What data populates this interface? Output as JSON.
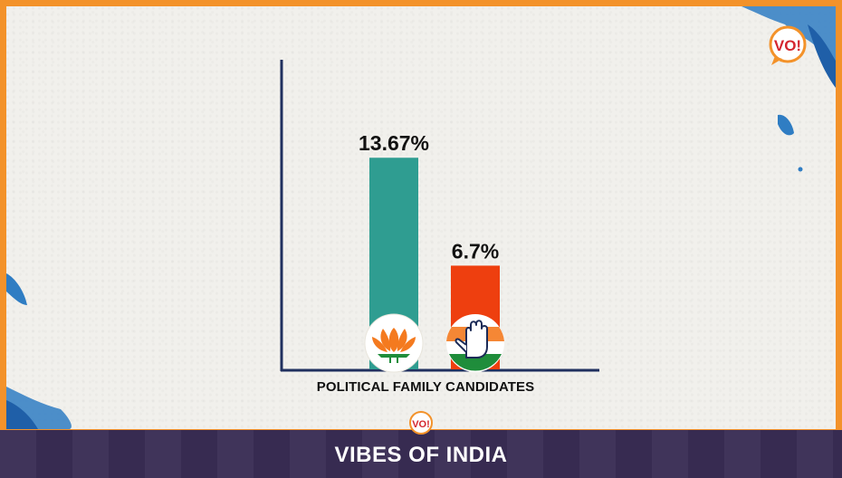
{
  "brand": {
    "logo_text": "VO!",
    "footer_text": "VIBES OF INDIA",
    "frame_color": "#f3922a",
    "footer_color": "#3a2d55",
    "logo_color": "#d4262f"
  },
  "chart_data": {
    "type": "bar",
    "categories": [
      "BJP",
      "Congress"
    ],
    "values": [
      13.67,
      6.7
    ],
    "value_labels": [
      "13.67%",
      "6.7%"
    ],
    "bar_colors": [
      "#2f9d91",
      "#ee3f0f"
    ],
    "category_icons": [
      "lotus-icon",
      "hand-icon"
    ],
    "title": "",
    "xlabel": "POLITICAL FAMILY CANDIDATES",
    "ylabel": "",
    "ylim": [
      0,
      20
    ],
    "grid": false,
    "legend": "none"
  }
}
